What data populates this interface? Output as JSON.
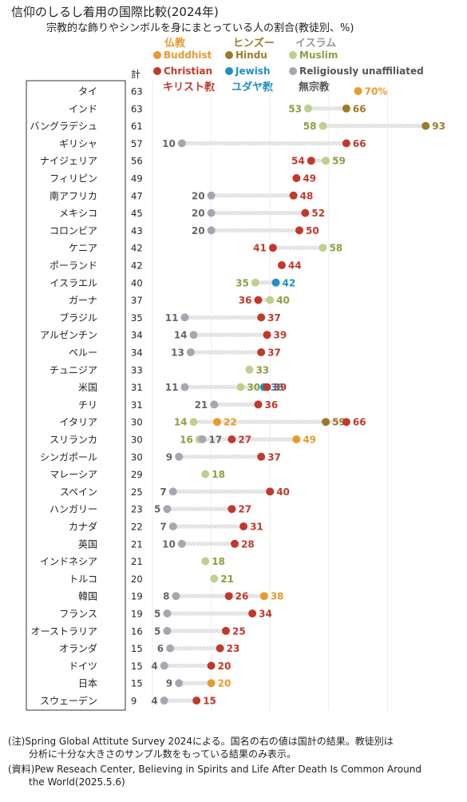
{
  "title": "信仰のしるし着用の国際比較(2024年)",
  "subtitle": "宗教的な飾りやシンボルを身にまとっている人の割合(教徒別、%)",
  "total_header": "計",
  "legend": [
    {
      "key": "buddhist",
      "en": "Buddhist",
      "jp": "仏教",
      "color": "#e89a2c"
    },
    {
      "key": "hindu",
      "en": "Hindu",
      "jp": "ヒンズー",
      "color": "#9c7a2a"
    },
    {
      "key": "muslim",
      "en": "Muslim",
      "jp": "イスラム",
      "color": "#bcd18e"
    },
    {
      "key": "christian",
      "en": "Christian",
      "jp": "キリスト教",
      "color": "#c0392b"
    },
    {
      "key": "jewish",
      "en": "Jewish",
      "jp": "ユダヤ教",
      "color": "#1f90c0"
    },
    {
      "key": "unaffiliated",
      "en": "Religiously unaffiliated",
      "jp": "無宗教",
      "color": "#a9a6b2"
    }
  ],
  "label_colors": {
    "buddhist": "#e89a2c",
    "hindu": "#9c7a2a",
    "muslim": "#8aa040",
    "christian": "#c0392b",
    "jewish": "#1f90c0",
    "unaffiliated": "#666666"
  },
  "chart_data": {
    "type": "scatter",
    "title": "信仰のしるし着用の国際比較(2024年)",
    "subtitle": "宗教的な飾りやシンボルを身にまとっている人の割合(教徒別、%)",
    "unit": "%",
    "countries": [
      {
        "name": "タイ",
        "total": 63,
        "values": {
          "buddhist": 70
        },
        "label_suffix": {
          "buddhist": "%"
        }
      },
      {
        "name": "インド",
        "total": 63,
        "values": {
          "muslim": 53,
          "hindu": 66
        }
      },
      {
        "name": "バングラデシュ",
        "total": 61,
        "values": {
          "muslim": 58,
          "hindu": 93
        }
      },
      {
        "name": "ギリシャ",
        "total": 57,
        "values": {
          "unaffiliated": 10,
          "christian": 66
        }
      },
      {
        "name": "ナイジェリア",
        "total": 56,
        "values": {
          "christian": 54,
          "muslim": 59
        }
      },
      {
        "name": "フィリピン",
        "total": 49,
        "values": {
          "christian": 49
        }
      },
      {
        "name": "南アフリカ",
        "total": 47,
        "values": {
          "unaffiliated": 20,
          "christian": 48
        }
      },
      {
        "name": "メキシコ",
        "total": 45,
        "values": {
          "unaffiliated": 20,
          "christian": 52
        }
      },
      {
        "name": "コロンビア",
        "total": 43,
        "values": {
          "unaffiliated": 20,
          "christian": 50
        }
      },
      {
        "name": "ケニア",
        "total": 42,
        "values": {
          "christian": 41,
          "muslim": 58
        }
      },
      {
        "name": "ポーランド",
        "total": 42,
        "values": {
          "christian": 44
        }
      },
      {
        "name": "イスラエル",
        "total": 40,
        "values": {
          "muslim": 35,
          "jewish": 42
        }
      },
      {
        "name": "ガーナ",
        "total": 37,
        "values": {
          "christian": 36,
          "muslim": 40
        }
      },
      {
        "name": "ブラジル",
        "total": 35,
        "values": {
          "unaffiliated": 11,
          "christian": 37
        }
      },
      {
        "name": "アルゼンチン",
        "total": 34,
        "values": {
          "unaffiliated": 14,
          "christian": 39
        }
      },
      {
        "name": "ペルー",
        "total": 34,
        "values": {
          "unaffiliated": 13,
          "christian": 37
        }
      },
      {
        "name": "チュニジア",
        "total": 33,
        "values": {
          "muslim": 33
        }
      },
      {
        "name": "米国",
        "total": 31,
        "values": {
          "unaffiliated": 11,
          "muslim": 30,
          "jewish": 38,
          "christian": 39
        }
      },
      {
        "name": "チリ",
        "total": 31,
        "values": {
          "unaffiliated": 21,
          "christian": 36
        }
      },
      {
        "name": "イタリア",
        "total": 30,
        "values": {
          "muslim": 14,
          "buddhist": 22,
          "hindu": 59,
          "christian": 66
        }
      },
      {
        "name": "スリランカ",
        "total": 30,
        "values": {
          "muslim": 16,
          "unaffiliated": 17,
          "christian": 27,
          "buddhist": 49
        }
      },
      {
        "name": "シンガポール",
        "total": 30,
        "values": {
          "unaffiliated": 9,
          "christian": 37
        }
      },
      {
        "name": "マレーシア",
        "total": 29,
        "values": {
          "muslim": 18
        }
      },
      {
        "name": "スペイン",
        "total": 25,
        "values": {
          "unaffiliated": 7,
          "christian": 40
        }
      },
      {
        "name": "ハンガリー",
        "total": 23,
        "values": {
          "unaffiliated": 5,
          "christian": 27
        }
      },
      {
        "name": "カナダ",
        "total": 22,
        "values": {
          "unaffiliated": 7,
          "christian": 31
        }
      },
      {
        "name": "英国",
        "total": 21,
        "values": {
          "unaffiliated": 10,
          "christian": 28
        }
      },
      {
        "name": "インドネシア",
        "total": 21,
        "values": {
          "muslim": 18
        }
      },
      {
        "name": "トルコ",
        "total": 20,
        "values": {
          "muslim": 21
        }
      },
      {
        "name": "韓国",
        "total": 19,
        "values": {
          "unaffiliated": 8,
          "christian": 26,
          "buddhist": 38
        }
      },
      {
        "name": "フランス",
        "total": 19,
        "values": {
          "unaffiliated": 5,
          "christian": 34
        }
      },
      {
        "name": "オーストラリア",
        "total": 16,
        "values": {
          "unaffiliated": 5,
          "christian": 25
        }
      },
      {
        "name": "オランダ",
        "total": 15,
        "values": {
          "unaffiliated": 6,
          "christian": 23
        }
      },
      {
        "name": "ドイツ",
        "total": 15,
        "values": {
          "unaffiliated": 4,
          "christian": 20
        }
      },
      {
        "name": "日本",
        "total": 15,
        "values": {
          "unaffiliated": 9,
          "buddhist": 20
        }
      },
      {
        "name": "スウェーデン",
        "total": 9,
        "values": {
          "unaffiliated": 4,
          "christian": 15
        }
      }
    ]
  },
  "notes": {
    "note1_line1": "(注)Spring Global Attitute Survey 2024による。国名の右の値は国計の結果。教徒別は",
    "note1_line2": "分析に十分な大きさのサンプル数をもっている結果のみ表示。",
    "note2_line1": "(資料)Pew Reseach Center, Believing in Spirits and Life After Death Is Common Around",
    "note2_line2": "the World(2025.5.6)"
  }
}
